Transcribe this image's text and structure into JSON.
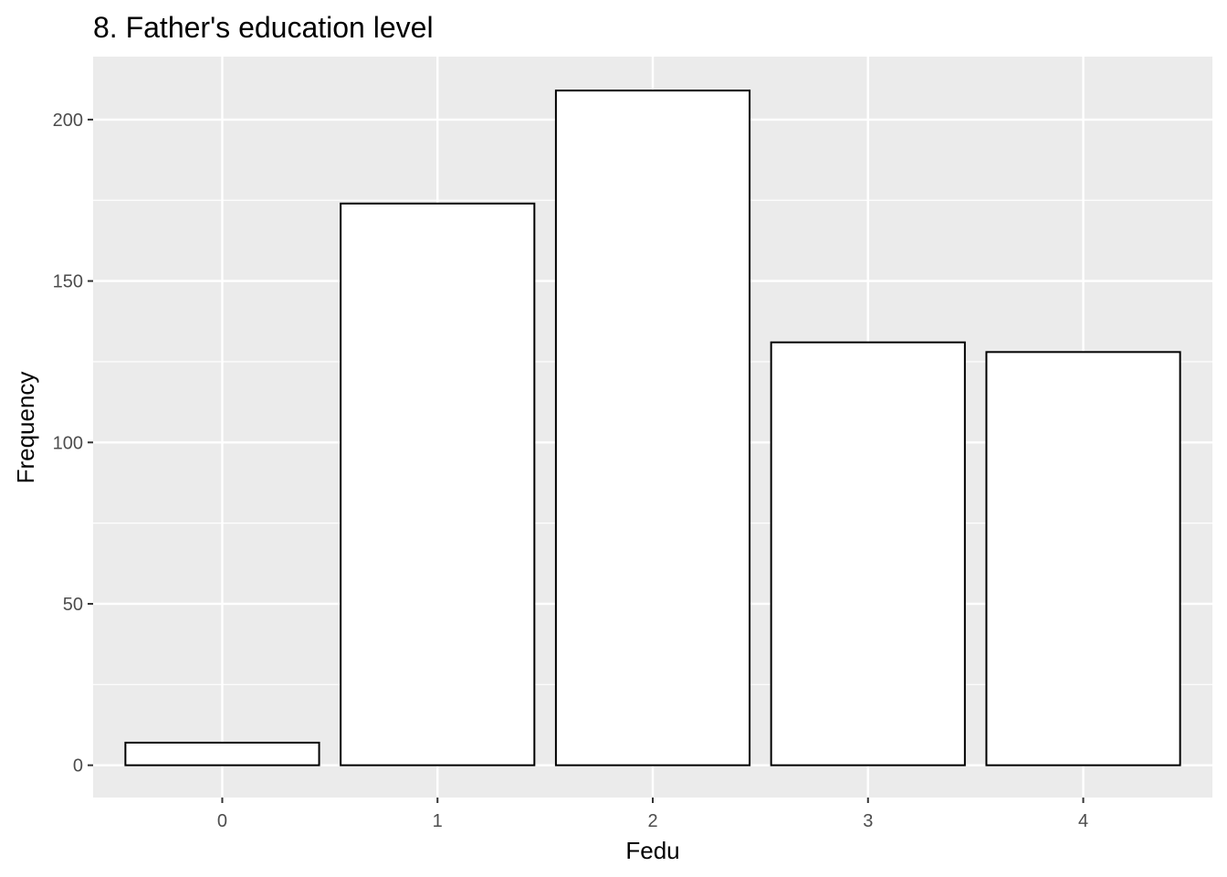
{
  "chart_data": {
    "type": "bar",
    "title": "8. Father's education level",
    "xlabel": "Fedu",
    "ylabel": "Frequency",
    "categories": [
      "0",
      "1",
      "2",
      "3",
      "4"
    ],
    "values": [
      7,
      174,
      209,
      131,
      128
    ],
    "ylim": [
      -10,
      219.5
    ],
    "yticks": [
      0,
      50,
      100,
      150,
      200
    ],
    "grid": true,
    "legend": "none",
    "colors": {
      "panel_background": "#ebebeb",
      "grid": "#ffffff",
      "bar_fill": "#ffffff",
      "bar_outline": "#000000",
      "tick_label": "#4d4d4d",
      "tick_mark": "#333333"
    }
  }
}
